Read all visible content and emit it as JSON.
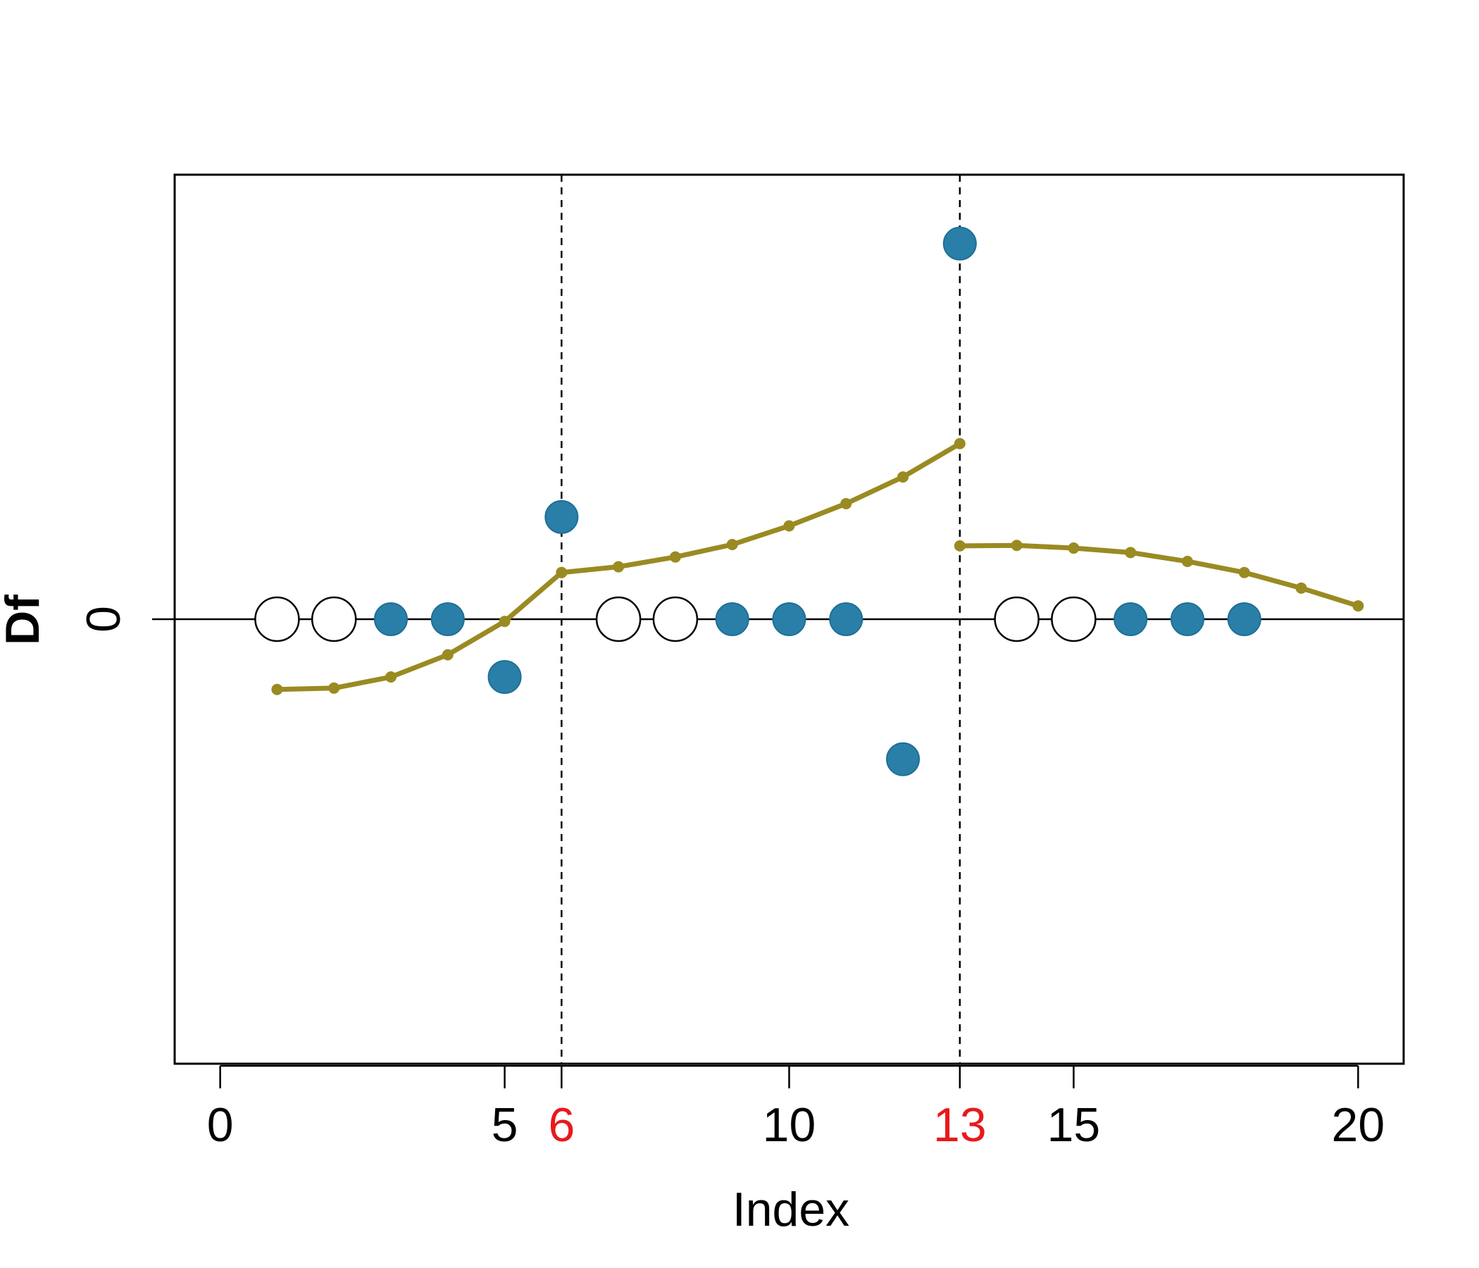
{
  "chart_data": {
    "type": "scatter",
    "title": "",
    "xlabel": "Index",
    "ylabel": "Df",
    "xlim": [
      -0.8,
      20.8
    ],
    "ylim": [
      -1.0,
      1.0
    ],
    "x_ticks": [
      {
        "value": 0,
        "label": "0",
        "color": "#000000"
      },
      {
        "value": 5,
        "label": "5",
        "color": "#000000"
      },
      {
        "value": 6,
        "label": "6",
        "color": "#e8191c"
      },
      {
        "value": 10,
        "label": "10",
        "color": "#000000"
      },
      {
        "value": 13,
        "label": "13",
        "color": "#e8191c"
      },
      {
        "value": 15,
        "label": "15",
        "color": "#000000"
      },
      {
        "value": 20,
        "label": "20",
        "color": "#000000"
      }
    ],
    "y_ticks": [
      {
        "value": 0,
        "label": "0"
      }
    ],
    "zero_line": true,
    "vertical_lines": [
      6,
      13
    ],
    "grid": false,
    "legend": "none",
    "open_points": {
      "x": [
        1,
        2,
        7,
        8,
        14,
        15
      ],
      "y": [
        0,
        0,
        0,
        0,
        0,
        0
      ],
      "stroke": "#000000"
    },
    "filled_points": {
      "x": [
        3,
        4,
        5,
        6,
        9,
        10,
        11,
        12,
        13,
        16,
        17,
        18
      ],
      "y": [
        0,
        0,
        -0.13,
        0.23,
        0,
        0,
        0,
        -0.315,
        0.845,
        0,
        0,
        0
      ],
      "color": "#2a7fa8"
    },
    "line_segments": {
      "color": "#9a8a22",
      "segments": [
        {
          "x": [
            1,
            2,
            3,
            4,
            5,
            6
          ],
          "y": [
            -0.158,
            -0.155,
            -0.13,
            -0.08,
            -0.005,
            0.105
          ]
        },
        {
          "x": [
            6,
            7,
            8,
            9,
            10,
            11,
            12,
            13
          ],
          "y": [
            0.105,
            0.118,
            0.14,
            0.168,
            0.21,
            0.26,
            0.32,
            0.395
          ]
        },
        {
          "x": [
            13,
            14,
            15,
            16,
            17,
            18,
            19,
            20
          ],
          "y": [
            0.165,
            0.166,
            0.16,
            0.15,
            0.13,
            0.105,
            0.07,
            0.03
          ]
        }
      ]
    }
  }
}
